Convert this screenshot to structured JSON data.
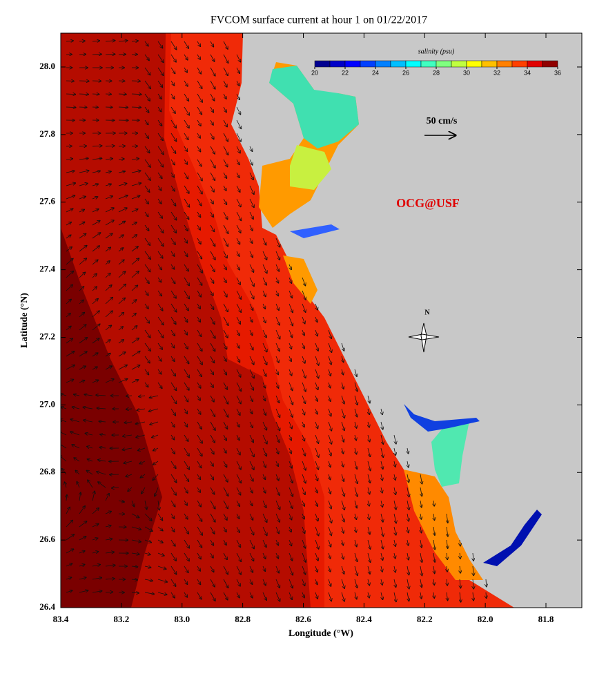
{
  "title": "FVCOM surface current at hour 1 on 01/22/2017",
  "x_axis": {
    "label": "Longitude (°W)",
    "ticks": [
      83.4,
      83.2,
      {
        "value": 83,
        "label": "83.0"
      },
      82.8,
      82.6,
      82.4,
      82.2,
      {
        "value": 82,
        "label": "82.0"
      },
      81.8
    ]
  },
  "y_axis": {
    "label": "Latitude (°N)",
    "ticks": [
      26.4,
      26.6,
      26.8,
      {
        "value": 27,
        "label": "27.0"
      },
      27.2,
      27.4,
      27.6,
      27.8,
      {
        "value": 28,
        "label": "28.0"
      }
    ]
  },
  "colorbar": {
    "label": "salinity (psu)",
    "ticks": [
      20,
      22,
      24,
      26,
      28,
      30,
      32,
      34,
      36
    ],
    "colors": [
      "#000090",
      "#0000c8",
      "#0000ff",
      "#0040ff",
      "#0080ff",
      "#00bfff",
      "#00ffff",
      "#40ffc0",
      "#80ff80",
      "#c0ff40",
      "#ffff00",
      "#ffc000",
      "#ff8000",
      "#ff4000",
      "#e00000",
      "#900000"
    ]
  },
  "scale_label": "50 cm/s",
  "watermark": "OCG@USF",
  "compass_label": "N"
}
